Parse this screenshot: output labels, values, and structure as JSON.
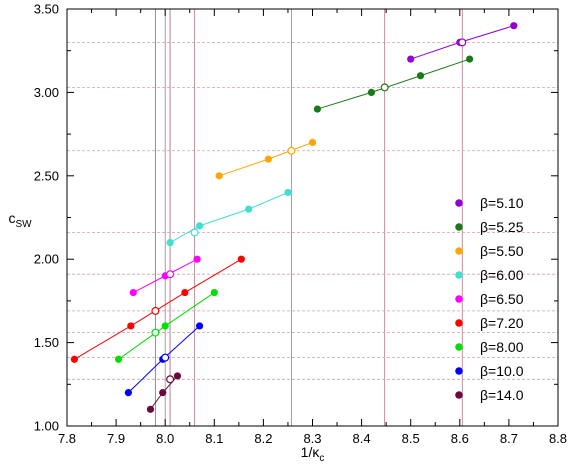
{
  "chart_data": {
    "type": "scatter",
    "title": "",
    "xlabel": "1/κ",
    "xlabel_sub": "c",
    "ylabel": "c",
    "ylabel_sub": "SW",
    "xlim": [
      7.8,
      8.8
    ],
    "ylim": [
      1.0,
      3.5
    ],
    "x_ticks": [
      "7.8",
      "7.9",
      "8.0",
      "8.1",
      "8.2",
      "8.3",
      "8.4",
      "8.5",
      "8.6",
      "8.7",
      "8.8"
    ],
    "y_ticks": [
      "1.00",
      "1.50",
      "2.00",
      "2.50",
      "3.00",
      "3.50"
    ],
    "legend_position": "right",
    "grid": false,
    "series": [
      {
        "name": "β=5.10",
        "color": "#9400d3",
        "x": [
          8.5,
          8.6,
          8.71
        ],
        "y": [
          3.2,
          3.3,
          3.4
        ],
        "interp": [
          8.605,
          3.3
        ]
      },
      {
        "name": "β=5.25",
        "color": "#1a7a1a",
        "x": [
          8.31,
          8.42,
          8.52,
          8.62
        ],
        "y": [
          2.9,
          3.0,
          3.1,
          3.2
        ],
        "interp": [
          8.447,
          3.03
        ]
      },
      {
        "name": "β=5.50",
        "color": "#ffa500",
        "x": [
          8.11,
          8.21,
          8.3
        ],
        "y": [
          2.5,
          2.6,
          2.7
        ],
        "interp": [
          8.257,
          2.65
        ]
      },
      {
        "name": "β=6.00",
        "color": "#40e0d0",
        "x": [
          8.01,
          8.07,
          8.17,
          8.25
        ],
        "y": [
          2.1,
          2.2,
          2.3,
          2.4
        ],
        "interp": [
          8.06,
          2.16
        ]
      },
      {
        "name": "β=6.50",
        "color": "#ff00ff",
        "x": [
          7.935,
          8.0,
          8.065
        ],
        "y": [
          1.8,
          1.9,
          2.0
        ],
        "interp": [
          8.01,
          1.91
        ]
      },
      {
        "name": "β=7.20",
        "color": "#ff0000",
        "x": [
          7.815,
          7.93,
          8.04,
          8.155
        ],
        "y": [
          1.4,
          1.6,
          1.8,
          2.0
        ],
        "interp": [
          7.98,
          1.69
        ]
      },
      {
        "name": "β=8.00",
        "color": "#00e000",
        "x": [
          7.905,
          8.0,
          8.1
        ],
        "y": [
          1.4,
          1.6,
          1.8
        ],
        "interp": [
          7.98,
          1.56
        ]
      },
      {
        "name": "β=10.0",
        "color": "#0000ff",
        "x": [
          7.925,
          7.995,
          8.07
        ],
        "y": [
          1.2,
          1.4,
          1.6
        ],
        "interp": [
          8.0,
          1.41
        ]
      },
      {
        "name": "β=14.0",
        "color": "#6b0a3c",
        "x": [
          7.97,
          7.995,
          8.025
        ],
        "y": [
          1.1,
          1.2,
          1.3
        ],
        "interp": [
          8.01,
          1.28
        ]
      }
    ]
  }
}
